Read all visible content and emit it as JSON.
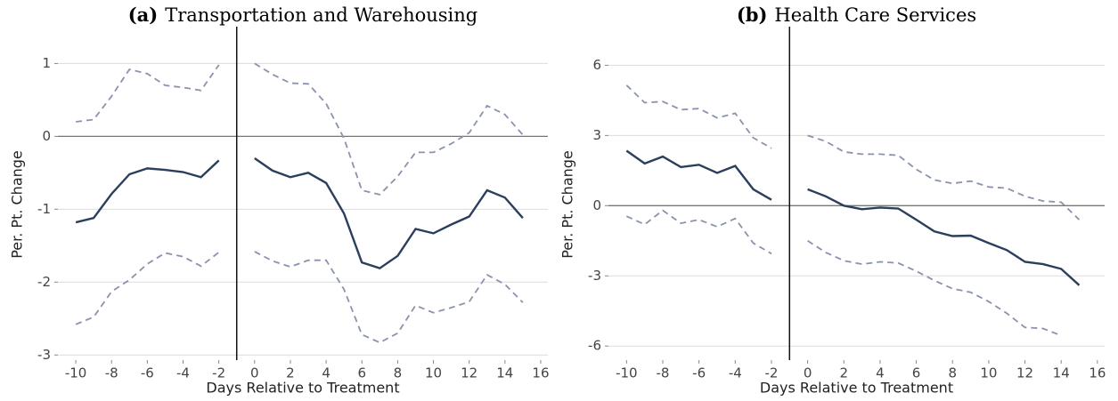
{
  "chart_data": [
    {
      "type": "line",
      "panel_label": "(a)",
      "title": "Transportation and Warehousing",
      "xlabel": "Days Relative to Treatment",
      "ylabel": "Per. Pt. Change",
      "x": [
        -10,
        -9,
        -8,
        -7,
        -6,
        -5,
        -4,
        -3,
        -2,
        -1,
        0,
        1,
        2,
        3,
        4,
        5,
        6,
        7,
        8,
        9,
        10,
        11,
        12,
        13,
        14,
        15
      ],
      "series": [
        {
          "color": "#2b3f5c",
          "style": "solid",
          "values": [
            -1.18,
            -1.12,
            -0.79,
            -0.52,
            -0.44,
            -0.46,
            -0.49,
            -0.56,
            -0.33,
            null,
            -0.3,
            -0.47,
            -0.56,
            -0.5,
            -0.64,
            -1.06,
            -1.73,
            -1.81,
            -1.64,
            -1.27,
            -1.33,
            -1.21,
            -1.1,
            -0.74,
            -0.84,
            -1.12
          ]
        },
        {
          "color": "#8a93ad",
          "style": "dashed",
          "values": [
            0.2,
            0.23,
            0.55,
            0.92,
            0.86,
            0.7,
            0.67,
            0.63,
            0.98,
            null,
            1.0,
            0.85,
            0.73,
            0.72,
            0.45,
            -0.03,
            -0.74,
            -0.8,
            -0.55,
            -0.22,
            -0.22,
            -0.1,
            0.05,
            0.42,
            0.3,
            0.02
          ]
        },
        {
          "color": "#8a93ad",
          "style": "dashed",
          "values": [
            -2.58,
            -2.48,
            -2.13,
            -1.97,
            -1.75,
            -1.6,
            -1.65,
            -1.78,
            -1.59,
            null,
            -1.58,
            -1.71,
            -1.79,
            -1.7,
            -1.7,
            -2.1,
            -2.72,
            -2.83,
            -2.7,
            -2.32,
            -2.42,
            -2.35,
            -2.27,
            -1.9,
            -2.03,
            -2.28
          ]
        }
      ],
      "xlim": [
        -11,
        16.4
      ],
      "xticks": [
        -10,
        -8,
        -6,
        -4,
        -2,
        0,
        2,
        4,
        6,
        8,
        10,
        12,
        14,
        16
      ],
      "ylim": [
        -3.07,
        1.2
      ],
      "yticks": [
        -3,
        -2,
        -1,
        0,
        1
      ],
      "grid": true,
      "vline": -1,
      "hline": 0
    },
    {
      "type": "line",
      "panel_label": "(b)",
      "title": "Health Care Services",
      "xlabel": "Days Relative to Treatment",
      "ylabel": "Per. Pt. Change",
      "x": [
        -10,
        -9,
        -8,
        -7,
        -6,
        -5,
        -4,
        -3,
        -2,
        -1,
        0,
        1,
        2,
        3,
        4,
        5,
        6,
        7,
        8,
        9,
        10,
        11,
        12,
        13,
        14,
        15
      ],
      "series": [
        {
          "color": "#2b3f5c",
          "style": "solid",
          "values": [
            2.35,
            1.8,
            2.1,
            1.65,
            1.75,
            1.4,
            1.7,
            0.7,
            0.25,
            null,
            0.7,
            0.4,
            0,
            -0.15,
            -0.08,
            -0.12,
            -0.6,
            -1.1,
            -1.3,
            -1.28,
            -1.6,
            -1.9,
            -2.4,
            -2.5,
            -2.7,
            -3.4
          ]
        },
        {
          "color": "#8a93ad",
          "style": "dashed",
          "values": [
            5.15,
            4.4,
            4.45,
            4.1,
            4.15,
            3.75,
            3.95,
            2.9,
            2.45,
            null,
            3.0,
            2.75,
            2.3,
            2.2,
            2.2,
            2.15,
            1.55,
            1.1,
            0.95,
            1.05,
            0.8,
            0.75,
            0.4,
            0.2,
            0.15,
            -0.6
          ]
        },
        {
          "color": "#8a93ad",
          "style": "dashed",
          "values": [
            -0.45,
            -0.8,
            -0.2,
            -0.75,
            -0.6,
            -0.9,
            -0.55,
            -1.6,
            -2.05,
            null,
            -1.5,
            -2.0,
            -2.35,
            -2.5,
            -2.4,
            -2.45,
            -2.8,
            -3.2,
            -3.55,
            -3.7,
            -4.1,
            -4.6,
            -5.2,
            -5.25,
            -5.55,
            null
          ]
        }
      ],
      "xlim": [
        -11,
        16.4
      ],
      "xticks": [
        -10,
        -8,
        -6,
        -4,
        -2,
        0,
        2,
        4,
        6,
        8,
        10,
        12,
        14,
        16
      ],
      "ylim": [
        -6.6,
        6.7
      ],
      "yticks": [
        -6,
        -3,
        0,
        3,
        6
      ],
      "grid": true,
      "vline": -1,
      "hline": 0
    }
  ]
}
